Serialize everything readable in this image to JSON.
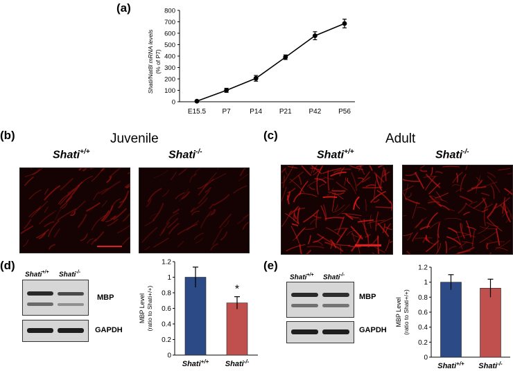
{
  "panels": {
    "a": "(a)",
    "b": "(b)",
    "c": "(c)",
    "d": "(d)",
    "e": "(e)"
  },
  "chart_data": [
    {
      "panel": "a",
      "type": "line",
      "categories": [
        "E15.5",
        "P7",
        "P14",
        "P21",
        "P42",
        "P56"
      ],
      "series": [
        {
          "values": [
            5,
            100,
            205,
            390,
            578,
            685
          ],
          "errors": [
            6,
            18,
            25,
            20,
            35,
            38
          ]
        }
      ],
      "ylabel_line1": "Shati/Nat8l mRNA levels",
      "ylabel_line2": "(% of P7)",
      "ylim": [
        0,
        800
      ],
      "yticks": [
        "0",
        "100",
        "200",
        "300",
        "400",
        "500",
        "600",
        "700",
        "800"
      ],
      "color": "#000000"
    },
    {
      "panel": "d",
      "type": "bar",
      "categories": [
        "Shati+/+",
        "Shati-/-"
      ],
      "values": [
        1.0,
        0.67
      ],
      "errors": [
        0.13,
        0.08
      ],
      "colors": [
        "#2c4b86",
        "#c0504d"
      ],
      "ylabel_line1": "MBP Level",
      "ylabel_line2": "(ratio to Shati+/+)",
      "ylim": [
        0,
        1.2
      ],
      "yticks": [
        "0",
        "0.2",
        "0.4",
        "0.6",
        "0.8",
        "1",
        "1.2"
      ],
      "annotation": "*"
    },
    {
      "panel": "e",
      "type": "bar",
      "categories": [
        "Shati+/+",
        "Shati-/-"
      ],
      "values": [
        1.0,
        0.92
      ],
      "errors": [
        0.1,
        0.12
      ],
      "colors": [
        "#2c4b86",
        "#c0504d"
      ],
      "ylabel_line1": "MBP Level",
      "ylabel_line2": "(ratio to Shati+/+)",
      "ylim": [
        0,
        1.2
      ],
      "yticks": [
        "0",
        "0.2",
        "0.4",
        "0.6",
        "0.8",
        "1",
        "1.2"
      ]
    }
  ],
  "figure": {
    "juvenile": "Juvenile",
    "adult": "Adult",
    "geno_base": "Shati",
    "wt_sup": "+/+",
    "ko_sup": "-/-",
    "mbp": "MBP",
    "gapdh": "GAPDH"
  }
}
